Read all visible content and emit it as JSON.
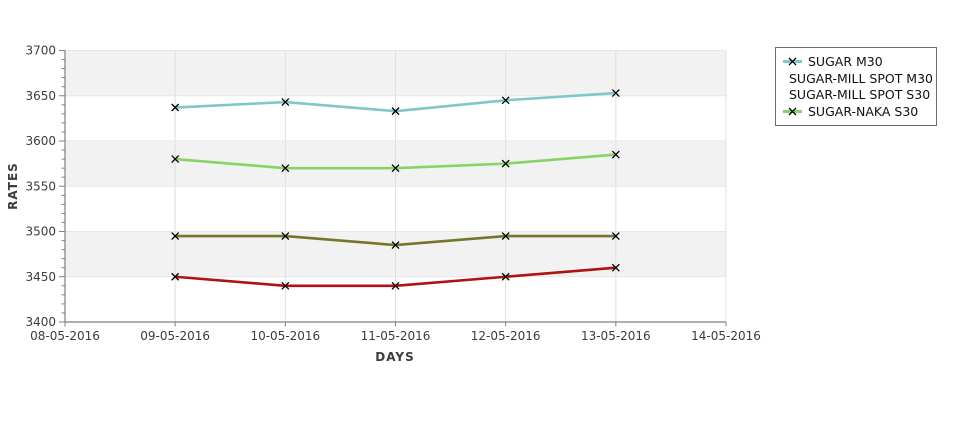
{
  "chart_data": {
    "type": "line",
    "title": "",
    "xlabel": "DAYS",
    "ylabel": "RATES",
    "x_tick_labels": [
      "08-05-2016",
      "09-05-2016",
      "10-05-2016",
      "11-05-2016",
      "12-05-2016",
      "13-05-2016",
      "14-05-2016"
    ],
    "y_tick_labels": [
      "3400",
      "3450",
      "3500",
      "3550",
      "3600",
      "3650",
      "3700"
    ],
    "ylim": [
      3400,
      3700
    ],
    "y_major_step": 50,
    "y_minor_step": 10,
    "grid": true,
    "legend_position": "outside-top-right",
    "categories": [
      "09-05-2016",
      "10-05-2016",
      "11-05-2016",
      "12-05-2016",
      "13-05-2016"
    ],
    "series": [
      {
        "name": "SUGAR M30",
        "color": "#7fc7c9",
        "values": [
          3637,
          3643,
          3633,
          3645,
          3653
        ]
      },
      {
        "name": "SUGAR-MILL SPOT M30",
        "color": "#76762a",
        "values": [
          3495,
          3495,
          3485,
          3495,
          3495
        ]
      },
      {
        "name": "SUGAR-MILL SPOT S30",
        "color": "#b01212",
        "values": [
          3450,
          3440,
          3440,
          3450,
          3460
        ]
      },
      {
        "name": "SUGAR-NAKA S30",
        "color": "#85d465",
        "values": [
          3580,
          3570,
          3570,
          3575,
          3585
        ]
      }
    ],
    "marker": {
      "shape": "x",
      "color": "#000000"
    }
  },
  "style": {
    "band_gray": "#f2f2f2",
    "band_white": "#ffffff",
    "grid_color": "#e0e0e0",
    "axis_color": "#808080",
    "tick_label_color": "#3c3c3c",
    "legend_border": "#6e6e6e"
  }
}
